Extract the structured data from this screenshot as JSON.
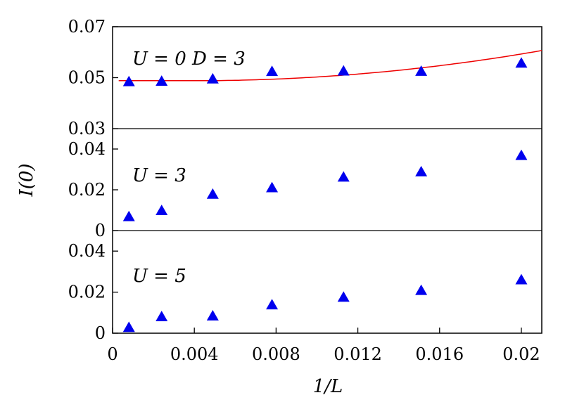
{
  "chart_data": {
    "type": "scatter",
    "xlabel": "1/L",
    "ylabel": "I(0)",
    "x_ticks": [
      "0",
      "0.004",
      "0.008",
      "0.012",
      "0.016",
      "0.02"
    ],
    "x_tick_values": [
      0,
      0.004,
      0.008,
      0.012,
      0.016,
      0.02
    ],
    "xlim": [
      0,
      0.021
    ],
    "marker": "triangle",
    "marker_color": "#0000ee",
    "fit_color": "#ee0000",
    "panels": [
      {
        "label": "U = 0  D = 3",
        "ylim": [
          0.03,
          0.07
        ],
        "y_ticks": [
          "0.03",
          "0.05",
          "0.07"
        ],
        "y_tick_values": [
          0.03,
          0.05,
          0.07
        ],
        "points": [
          {
            "x": 0.0008,
            "y": 0.0484
          },
          {
            "x": 0.0024,
            "y": 0.0486
          },
          {
            "x": 0.0049,
            "y": 0.0495
          },
          {
            "x": 0.0078,
            "y": 0.0524
          },
          {
            "x": 0.0113,
            "y": 0.0526
          },
          {
            "x": 0.0151,
            "y": 0.0525
          },
          {
            "x": 0.02,
            "y": 0.0557
          }
        ],
        "fit": {
          "a": 0.0488,
          "b": 41.0,
          "x0": 0.004
        }
      },
      {
        "label": "U = 3",
        "ylim": [
          0,
          0.05
        ],
        "y_ticks": [
          "0",
          "0.02",
          "0.04"
        ],
        "y_tick_values": [
          0,
          0.02,
          0.04
        ],
        "points": [
          {
            "x": 0.0008,
            "y": 0.0068
          },
          {
            "x": 0.0024,
            "y": 0.0098
          },
          {
            "x": 0.0049,
            "y": 0.0178
          },
          {
            "x": 0.0078,
            "y": 0.021
          },
          {
            "x": 0.0113,
            "y": 0.0262
          },
          {
            "x": 0.0151,
            "y": 0.0288
          },
          {
            "x": 0.02,
            "y": 0.0368
          }
        ]
      },
      {
        "label": "U = 5",
        "ylim": [
          0,
          0.05
        ],
        "y_ticks": [
          "0",
          "0.02",
          "0.04"
        ],
        "y_tick_values": [
          0,
          0.02,
          0.04
        ],
        "points": [
          {
            "x": 0.0008,
            "y": 0.0028
          },
          {
            "x": 0.0024,
            "y": 0.008
          },
          {
            "x": 0.0049,
            "y": 0.0084
          },
          {
            "x": 0.0078,
            "y": 0.0138
          },
          {
            "x": 0.0113,
            "y": 0.0175
          },
          {
            "x": 0.0151,
            "y": 0.0208
          },
          {
            "x": 0.02,
            "y": 0.026
          }
        ]
      }
    ]
  }
}
